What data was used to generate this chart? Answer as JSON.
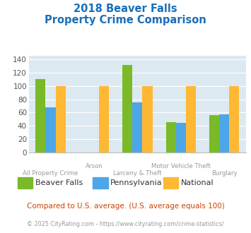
{
  "title_line1": "2018 Beaver Falls",
  "title_line2": "Property Crime Comparison",
  "title_color": "#1a6fba",
  "categories": [
    "All Property Crime",
    "Arson",
    "Larceny & Theft",
    "Motor Vehicle Theft",
    "Burglary"
  ],
  "series": {
    "Beaver Falls": [
      110,
      0,
      131,
      46,
      56
    ],
    "Pennsylvania": [
      68,
      0,
      75,
      45,
      57
    ],
    "National": [
      100,
      100,
      100,
      100,
      100
    ]
  },
  "colors": {
    "Beaver Falls": "#7aba28",
    "Pennsylvania": "#4da6e8",
    "National": "#ffb833"
  },
  "ylim": [
    0,
    145
  ],
  "yticks": [
    0,
    20,
    40,
    60,
    80,
    100,
    120,
    140
  ],
  "plot_bg": "#dce9f0",
  "grid_color": "#ffffff",
  "xlabel_color": "#999999",
  "footer_text1": "Compared to U.S. average. (U.S. average equals 100)",
  "footer_text2": "© 2025 CityRating.com - https://www.cityrating.com/crime-statistics/",
  "footer_color1": "#cc4400",
  "footer_color2": "#999999"
}
